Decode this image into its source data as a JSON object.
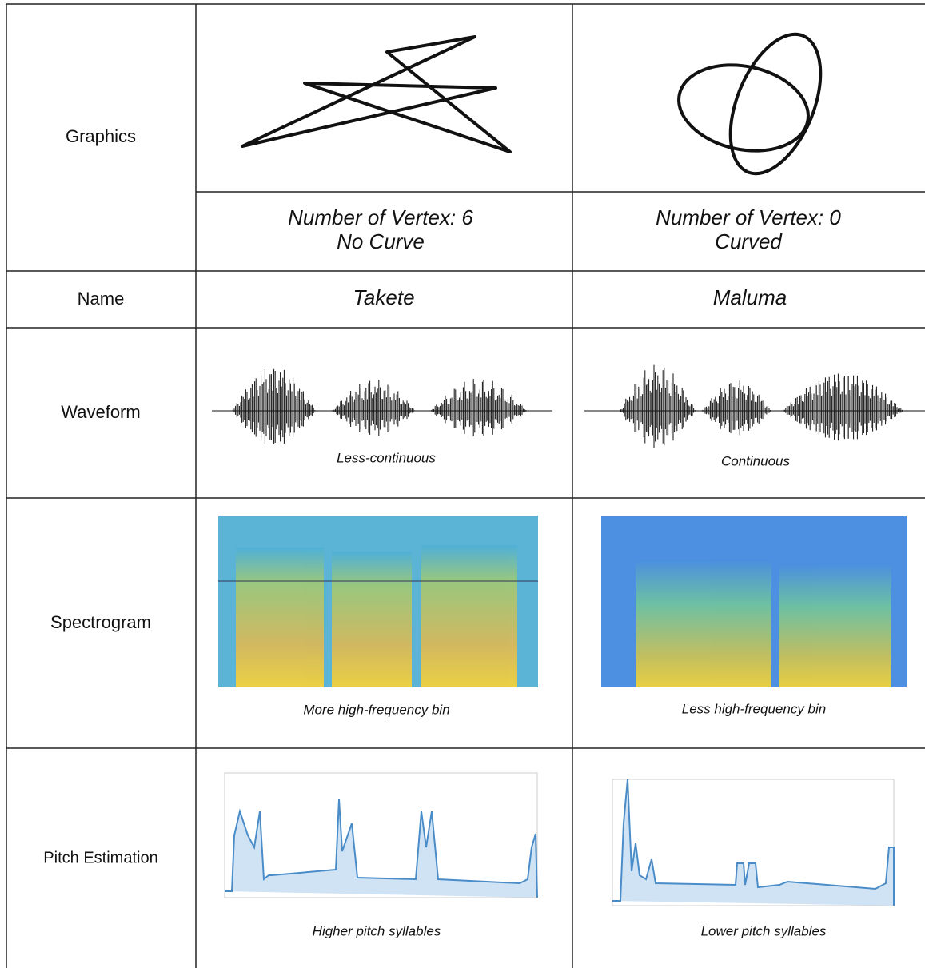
{
  "table": {
    "rows": [
      {
        "label": "Graphics",
        "cells": [
          {
            "lines": [
              "Number of Vertex: 6",
              "No Curve"
            ]
          },
          {
            "lines": [
              "Number of Vertex: 0",
              "Curved"
            ]
          }
        ]
      },
      {
        "label": "Name",
        "cells": [
          "Takete",
          "Maluma"
        ]
      },
      {
        "label": "Waveform",
        "cells": [
          "Less-continuous",
          "Continuous"
        ]
      },
      {
        "label": "Spectrogram",
        "cells": [
          "More high-frequency bin",
          "Less high-frequency bin"
        ]
      },
      {
        "label": "Pitch Estimation",
        "cells": [
          "Higher pitch syllables",
          "Lower pitch syllables"
        ]
      }
    ]
  }
}
